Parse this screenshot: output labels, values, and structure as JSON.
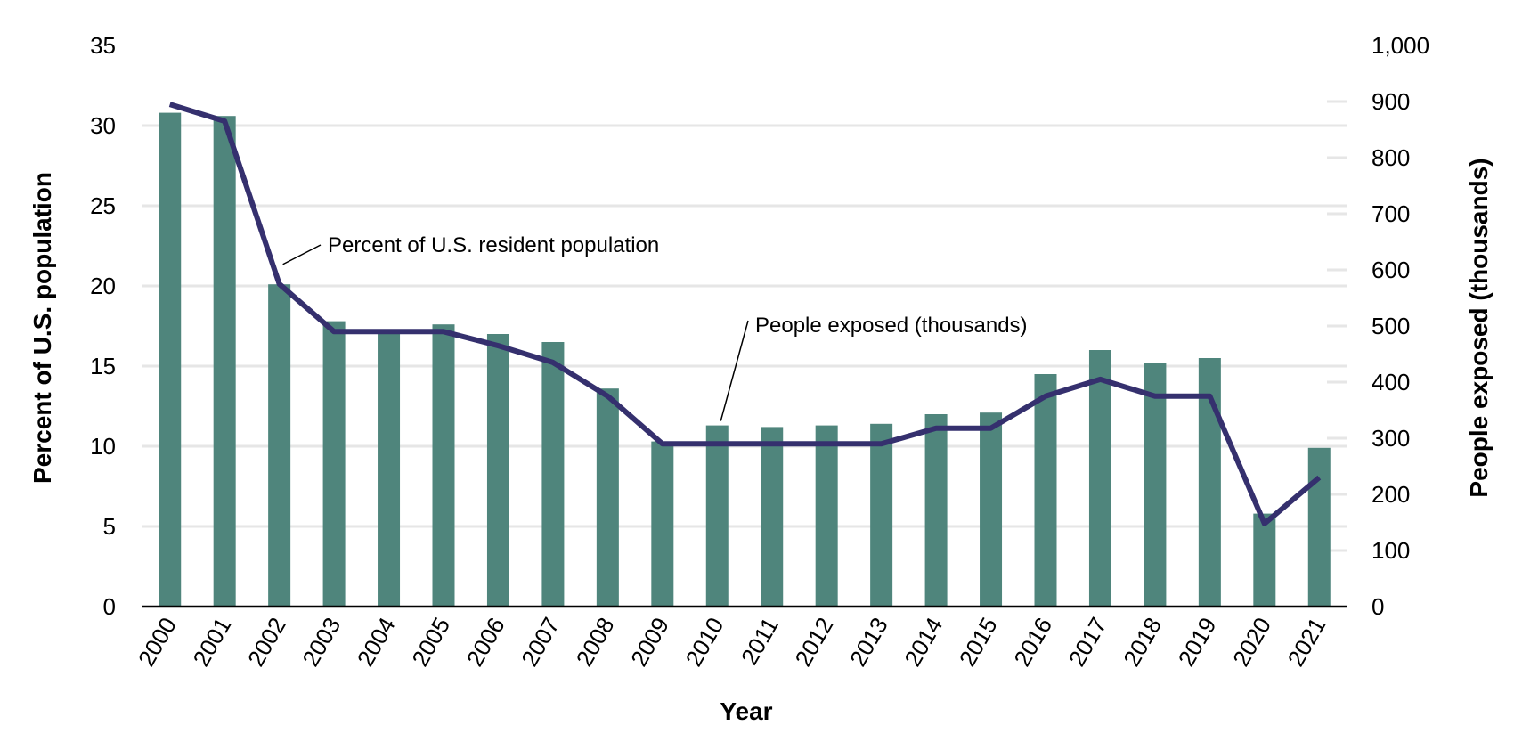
{
  "chart_data": {
    "type": "bar",
    "xlabel": "Year",
    "ylabel_left": "Percent of U.S. population",
    "ylabel_right": "People exposed (thousands)",
    "categories": [
      "2000",
      "2001",
      "2002",
      "2003",
      "2004",
      "2005",
      "2006",
      "2007",
      "2008",
      "2009",
      "2010",
      "2011",
      "2012",
      "2013",
      "2014",
      "2015",
      "2016",
      "2017",
      "2018",
      "2019",
      "2020",
      "2021"
    ],
    "series": [
      {
        "name": "Percent of U.S. resident population",
        "type": "bar",
        "axis": "left",
        "color": "#4f857c",
        "values": [
          30.8,
          30.6,
          20.1,
          17.8,
          17.2,
          17.6,
          17.0,
          16.5,
          13.6,
          10.3,
          11.3,
          11.2,
          11.3,
          11.4,
          12.0,
          12.1,
          14.5,
          16.0,
          15.2,
          15.5,
          5.8,
          9.9
        ]
      },
      {
        "name": "People exposed (thousands)",
        "type": "line",
        "axis": "right",
        "color": "#35306e",
        "values": [
          895,
          865,
          575,
          490,
          490,
          490,
          465,
          435,
          375,
          290,
          290,
          290,
          290,
          290,
          318,
          318,
          375,
          405,
          375,
          375,
          148,
          230
        ]
      }
    ],
    "ylim_left": [
      0,
      35
    ],
    "yticks_left": [
      0,
      5,
      10,
      15,
      20,
      25,
      30,
      35
    ],
    "ytick_labels_left": [
      "0",
      "5",
      "10",
      "15",
      "20",
      "25",
      "30",
      "35"
    ],
    "ylim_right": [
      0,
      1000
    ],
    "yticks_right": [
      0,
      100,
      200,
      300,
      400,
      500,
      600,
      700,
      800,
      900,
      1000
    ],
    "ytick_labels_right": [
      "0",
      "100",
      "200",
      "300",
      "400",
      "500",
      "600",
      "700",
      "800",
      "900",
      "1,000"
    ],
    "annotations": [
      {
        "text": "Percent of U.S. resident population",
        "series": 0
      },
      {
        "text": "People exposed (thousands)",
        "series": 1
      }
    ],
    "grid": true,
    "legend": "none (inline annotations)"
  }
}
